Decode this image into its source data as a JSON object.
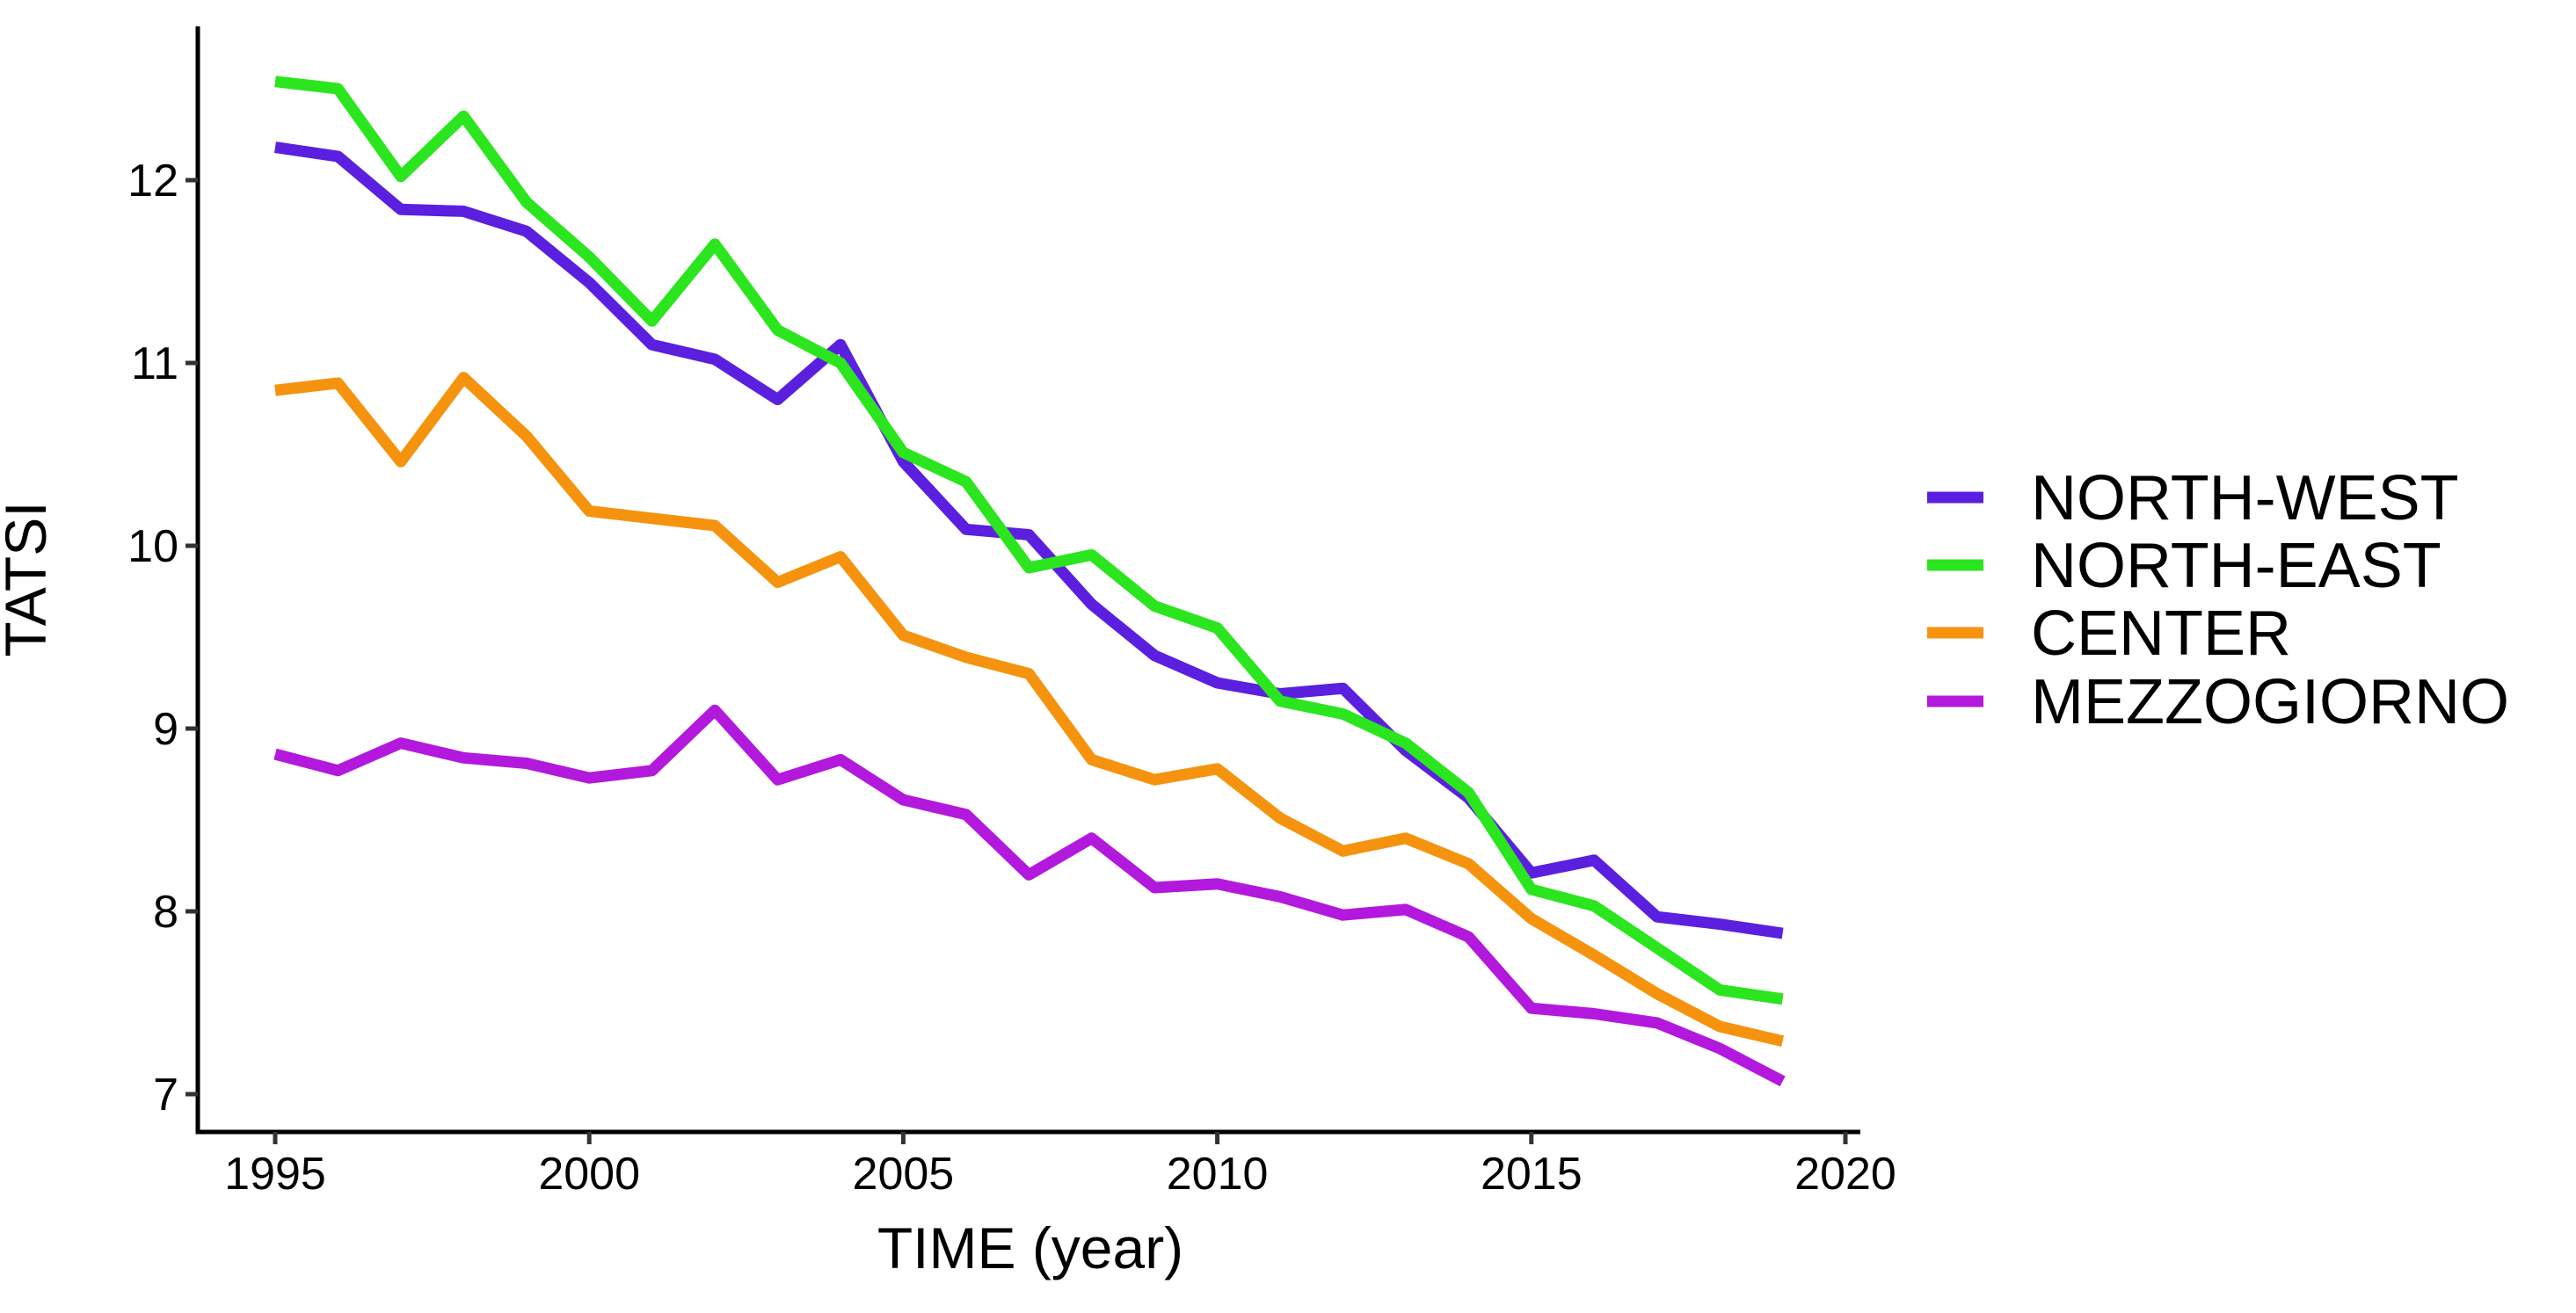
{
  "chart_data": {
    "type": "line",
    "title": "",
    "xlabel": "TIME (year)",
    "ylabel": "TATSI",
    "x": [
      1995,
      1996,
      1997,
      1998,
      1999,
      2000,
      2001,
      2002,
      2003,
      2004,
      2005,
      2006,
      2007,
      2008,
      2009,
      2010,
      2011,
      2012,
      2013,
      2014,
      2015,
      2016,
      2017,
      2018,
      2019
    ],
    "x_tick_labels": [
      "1995",
      "2000",
      "2005",
      "2010",
      "2015",
      "2020"
    ],
    "x_tick_values": [
      1995,
      2000,
      2005,
      2010,
      2015,
      2020
    ],
    "y_tick_labels": [
      "7",
      "8",
      "9",
      "10",
      "11",
      "12"
    ],
    "y_tick_values": [
      7,
      8,
      9,
      10,
      11,
      12
    ],
    "xlim": [
      1993.8,
      2020.2
    ],
    "ylim": [
      6.79,
      12.84
    ],
    "grid": false,
    "legend_position": "right",
    "series": [
      {
        "name": "NORTH-WEST",
        "color": "#5b1fe0",
        "values": [
          12.18,
          12.13,
          11.84,
          11.83,
          11.72,
          11.44,
          11.1,
          11.02,
          10.8,
          11.1,
          10.46,
          10.09,
          10.06,
          9.68,
          9.4,
          9.25,
          9.19,
          9.22,
          8.88,
          8.62,
          8.21,
          8.28,
          7.97,
          7.93,
          7.88
        ]
      },
      {
        "name": "NORTH-EAST",
        "color": "#2be51e",
        "values": [
          12.54,
          12.5,
          12.02,
          12.35,
          11.88,
          11.58,
          11.23,
          11.65,
          11.18,
          11.0,
          10.51,
          10.35,
          9.88,
          9.95,
          9.67,
          9.55,
          9.15,
          9.08,
          8.92,
          8.65,
          8.12,
          8.03,
          7.8,
          7.57,
          7.52
        ]
      },
      {
        "name": "CENTER",
        "color": "#f5930f",
        "values": [
          10.85,
          10.89,
          10.46,
          10.92,
          10.6,
          10.19,
          10.15,
          10.11,
          9.8,
          9.94,
          9.51,
          9.39,
          9.3,
          8.83,
          8.72,
          8.78,
          8.51,
          8.33,
          8.4,
          8.26,
          7.96,
          7.76,
          7.55,
          7.37,
          7.29
        ]
      },
      {
        "name": "MEZZOGIORNO",
        "color": "#b318dd",
        "values": [
          8.86,
          8.77,
          8.92,
          8.84,
          8.81,
          8.73,
          8.77,
          9.1,
          8.72,
          8.83,
          8.61,
          8.53,
          8.2,
          8.4,
          8.13,
          8.15,
          8.08,
          7.98,
          8.01,
          7.86,
          7.47,
          7.44,
          7.39,
          7.25,
          7.07
        ]
      }
    ]
  },
  "colors": {
    "background": "#ffffff",
    "axis_line": "#000000",
    "tick_mark": "#333333",
    "text": "#000000"
  }
}
